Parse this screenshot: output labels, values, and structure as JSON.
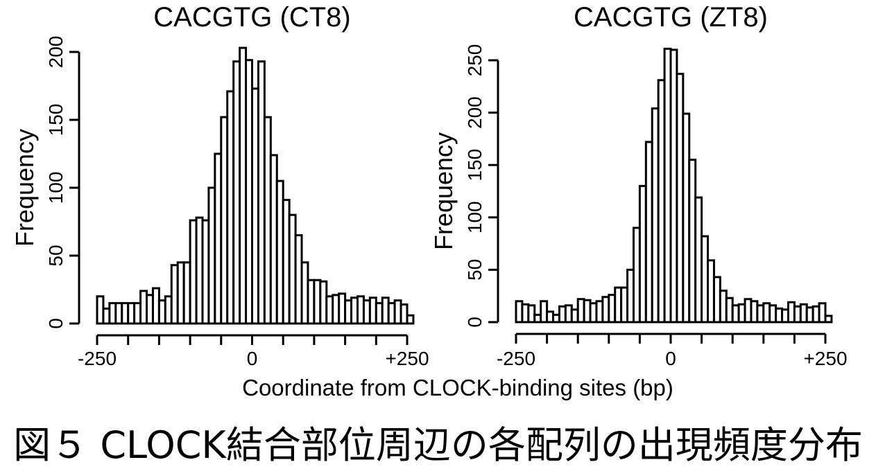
{
  "figure": {
    "xlabel": "Coordinate from CLOCK-binding sites (bp)",
    "caption": "図５ CLOCK結合部位周辺の各配列の出現頻度分布"
  },
  "chart_data": [
    {
      "type": "bar",
      "title": "CACGTG (CT8)",
      "ylabel": "Frequency",
      "xlim": [
        -250,
        250
      ],
      "ylim": [
        0,
        200
      ],
      "yticks": [
        0,
        50,
        100,
        150,
        200
      ],
      "xtick_labels": [
        "-250",
        "0",
        "+250"
      ],
      "bin_width": 10,
      "values": [
        20,
        11,
        15,
        15,
        15,
        15,
        15,
        24,
        21,
        26,
        17,
        20,
        43,
        45,
        45,
        76,
        78,
        76,
        100,
        125,
        152,
        171,
        193,
        203,
        194,
        173,
        193,
        152,
        124,
        105,
        91,
        80,
        65,
        45,
        32,
        32,
        31,
        20,
        21,
        22,
        17,
        19,
        20,
        17,
        19,
        15,
        19,
        15,
        17,
        14,
        6
      ]
    },
    {
      "type": "bar",
      "title": "CACGTG (ZT8)",
      "ylabel": "Frequency",
      "xlim": [
        -250,
        250
      ],
      "ylim": [
        0,
        250
      ],
      "yticks": [
        0,
        50,
        100,
        150,
        200,
        250
      ],
      "xtick_labels": [
        "-250",
        "0",
        "+250"
      ],
      "bin_width": 10,
      "values": [
        20,
        17,
        16,
        7,
        20,
        10,
        7,
        15,
        16,
        12,
        22,
        21,
        18,
        20,
        24,
        26,
        33,
        33,
        50,
        90,
        130,
        172,
        204,
        231,
        261,
        260,
        237,
        199,
        155,
        119,
        82,
        59,
        43,
        30,
        23,
        16,
        17,
        22,
        20,
        16,
        18,
        16,
        13,
        12,
        19,
        15,
        17,
        14,
        15,
        18,
        6
      ]
    }
  ]
}
